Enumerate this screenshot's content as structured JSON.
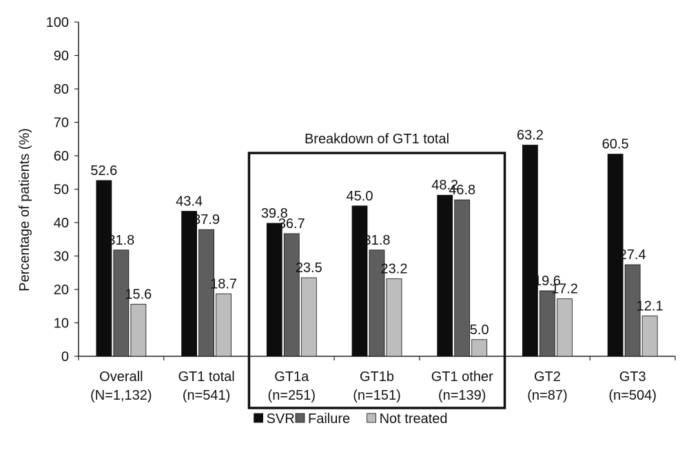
{
  "chart_data": {
    "type": "bar",
    "categories": [
      [
        "Overall",
        "(N=1,132)"
      ],
      [
        "GT1 total",
        "(n=541)"
      ],
      [
        "GT1a",
        "(n=251)"
      ],
      [
        "GT1b",
        "(n=151)"
      ],
      [
        "GT1 other",
        "(n=139)"
      ],
      [
        "GT2",
        "(n=87)"
      ],
      [
        "GT3",
        "(n=504)"
      ]
    ],
    "series": [
      {
        "name": "SVR",
        "color": "#0d0d0d",
        "values": [
          52.6,
          43.4,
          39.8,
          45.0,
          48.2,
          63.2,
          60.5
        ]
      },
      {
        "name": "Failure",
        "color": "#5e5e5e",
        "values": [
          31.8,
          37.9,
          36.7,
          31.8,
          46.8,
          19.6,
          27.4
        ]
      },
      {
        "name": "Not treated",
        "color": "#bdbdbd",
        "values": [
          15.6,
          18.7,
          23.5,
          23.2,
          5.0,
          17.2,
          12.1
        ]
      }
    ],
    "ylabel": "Percentage of patients (%)",
    "ylim": [
      0,
      100
    ],
    "yticks": [
      0,
      10,
      20,
      30,
      40,
      50,
      60,
      70,
      80,
      90,
      100
    ],
    "grid": false,
    "legend_position": "bottom",
    "annotation": {
      "text": "Breakdown of GT1 total",
      "spans_categories": [
        "GT1a",
        "GT1b",
        "GT1 other"
      ]
    }
  }
}
